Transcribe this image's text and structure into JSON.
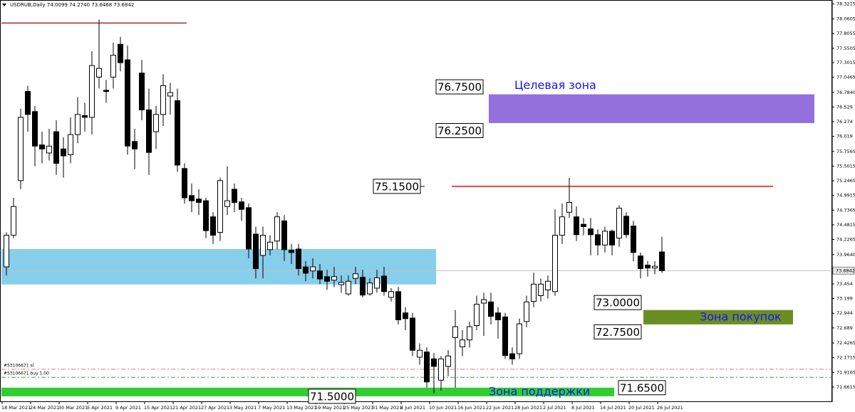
{
  "chart_data": {
    "type": "candlestick",
    "title": "USDRUB,Daily 74.0099 74.2740 73.6468 73.6842",
    "ylim": [
      71.4,
      78.39
    ],
    "yticks": [
      78.3215,
      78.0605,
      77.8055,
      77.5505,
      77.3015,
      77.0465,
      {
        "value": 76.784,
        "label": "76.7840"
      },
      76.529,
      76.274,
      76.019,
      75.7565,
      75.5015,
      75.2465,
      74.9915,
      74.7365,
      74.4815,
      74.2265,
      {
        "value": 73.964,
        "label": "73.9640"
      },
      73.454,
      73.199,
      72.944,
      72.689,
      72.4265,
      72.1715,
      71.9165,
      71.6615
    ],
    "current_price": 73.6842,
    "bull_color": "#ffffff",
    "bear_color": "#000000",
    "categories": [
      "18 Mar 2021",
      null,
      null,
      null,
      "24 Mar 2021",
      null,
      null,
      null,
      "30 Mar 2021",
      null,
      null,
      null,
      "5 Apr 2021",
      null,
      null,
      null,
      "9 Apr 2021",
      null,
      null,
      null,
      "15 Apr 2021",
      null,
      null,
      null,
      "21 Apr 2021",
      null,
      null,
      null,
      "27 Apr 2021",
      null,
      null,
      null,
      "3 May 2021",
      null,
      null,
      null,
      "7 May 2021",
      null,
      null,
      null,
      "13 May 2021",
      null,
      null,
      null,
      "19 May 2021",
      null,
      null,
      null,
      "25 May 2021",
      null,
      null,
      null,
      "31 May 2021",
      null,
      null,
      null,
      "4 Jun 2021",
      null,
      null,
      null,
      "10 Jun 2021",
      null,
      null,
      null,
      "16 Jun 2021",
      null,
      null,
      null,
      "22 Jun 2021",
      null,
      null,
      null,
      "28 Jun 2021",
      null,
      null,
      null,
      "2 Jul 2021",
      null,
      null,
      null,
      "8 Jul 2021",
      null,
      null,
      null,
      "14 Jul 2021",
      null,
      null,
      null,
      "20 Jul 2021",
      null,
      null,
      null,
      "26 Jul 2021"
    ],
    "candles": [
      [
        73.75,
        74.35,
        73.6,
        74.3
      ],
      [
        74.3,
        74.95,
        74.25,
        74.8
      ],
      [
        75.25,
        76.5,
        75.1,
        76.35
      ],
      [
        76.8,
        76.9,
        76.1,
        76.4
      ],
      [
        76.45,
        76.55,
        75.5,
        75.85
      ],
      [
        75.87,
        76.1,
        75.55,
        75.8
      ],
      [
        75.73,
        76.15,
        75.6,
        75.85
      ],
      [
        76.1,
        76.3,
        75.35,
        75.55
      ],
      [
        75.8,
        76.0,
        75.3,
        75.68
      ],
      [
        75.7,
        76.35,
        75.55,
        76.05
      ],
      [
        76.05,
        76.7,
        75.9,
        76.4
      ],
      [
        76.38,
        76.6,
        76.1,
        76.35
      ],
      [
        76.35,
        77.5,
        76.05,
        77.25
      ],
      [
        77.05,
        78.05,
        76.85,
        77.2
      ],
      [
        76.82,
        77.0,
        76.6,
        76.8
      ],
      [
        77.05,
        77.65,
        76.85,
        77.43
      ],
      [
        77.62,
        77.75,
        77.15,
        77.3
      ],
      [
        77.35,
        77.6,
        75.7,
        75.85
      ],
      [
        75.93,
        76.15,
        75.45,
        75.8
      ],
      [
        77.12,
        77.35,
        76.3,
        76.48
      ],
      [
        76.48,
        76.85,
        75.35,
        75.74
      ],
      [
        76.1,
        76.55,
        75.8,
        76.4
      ],
      [
        76.4,
        77.1,
        76.2,
        76.9
      ],
      [
        76.72,
        76.95,
        76.4,
        76.78
      ],
      [
        76.64,
        76.85,
        75.4,
        75.52
      ],
      [
        75.46,
        75.55,
        74.85,
        74.95
      ],
      [
        74.99,
        75.2,
        74.7,
        74.9
      ],
      [
        74.93,
        75.1,
        74.65,
        74.87
      ],
      [
        74.9,
        74.95,
        74.25,
        74.38
      ],
      [
        74.62,
        74.7,
        74.15,
        74.3
      ],
      [
        74.35,
        75.3,
        74.2,
        75.25
      ],
      [
        74.8,
        75.5,
        74.65,
        74.9
      ],
      [
        75.1,
        75.2,
        74.7,
        74.87
      ],
      [
        74.88,
        74.95,
        74.55,
        74.75
      ],
      [
        74.78,
        74.85,
        73.9,
        74.06
      ],
      [
        74.32,
        74.45,
        73.55,
        73.72
      ],
      [
        73.95,
        74.45,
        73.55,
        74.3
      ],
      [
        74.05,
        74.3,
        73.95,
        74.18
      ],
      [
        74.2,
        74.7,
        74.05,
        74.62
      ],
      [
        74.55,
        74.65,
        73.85,
        74.05
      ],
      [
        74.04,
        74.15,
        73.8,
        74.0
      ],
      [
        74.06,
        74.15,
        73.6,
        73.72
      ],
      [
        73.75,
        73.85,
        73.5,
        73.64
      ],
      [
        73.68,
        73.9,
        73.55,
        73.75
      ],
      [
        73.68,
        73.8,
        73.45,
        73.54
      ],
      [
        73.58,
        73.7,
        73.35,
        73.5
      ],
      [
        73.52,
        73.75,
        73.4,
        73.58
      ],
      [
        73.44,
        73.6,
        73.3,
        73.48
      ],
      [
        73.28,
        73.6,
        73.25,
        73.5
      ],
      [
        73.55,
        73.75,
        73.45,
        73.63
      ],
      [
        73.57,
        73.7,
        73.22,
        73.26
      ],
      [
        73.28,
        73.55,
        73.25,
        73.47
      ],
      [
        73.38,
        73.7,
        73.3,
        73.56
      ],
      [
        73.59,
        73.75,
        73.25,
        73.32
      ],
      [
        73.22,
        73.38,
        73.15,
        73.32
      ],
      [
        73.32,
        73.4,
        72.75,
        72.83
      ],
      [
        72.95,
        73.05,
        72.65,
        72.85
      ],
      [
        72.86,
        72.95,
        72.2,
        72.3
      ],
      [
        72.18,
        72.42,
        72.05,
        72.3
      ],
      [
        72.27,
        72.35,
        71.65,
        71.75
      ],
      [
        72.15,
        72.25,
        71.55,
        72.02
      ],
      [
        71.78,
        72.2,
        71.6,
        72.15
      ],
      [
        72.02,
        72.3,
        71.85,
        72.2
      ],
      [
        72.52,
        73.0,
        71.65,
        72.71
      ],
      [
        72.36,
        72.65,
        72.2,
        72.48
      ],
      [
        72.48,
        72.8,
        72.35,
        72.71
      ],
      [
        72.73,
        73.25,
        72.65,
        73.1
      ],
      [
        73.12,
        73.3,
        72.55,
        73.18
      ],
      [
        73.14,
        73.3,
        72.75,
        72.89
      ],
      [
        72.95,
        73.05,
        72.5,
        72.83
      ],
      [
        72.88,
        72.95,
        72.15,
        72.21
      ],
      [
        72.24,
        72.35,
        72.05,
        72.15
      ],
      [
        72.24,
        72.85,
        72.15,
        72.76
      ],
      [
        72.8,
        73.25,
        72.7,
        73.14
      ],
      [
        73.15,
        73.65,
        73.05,
        73.45
      ],
      [
        73.25,
        73.55,
        73.15,
        73.45
      ],
      [
        73.35,
        73.6,
        73.2,
        73.5
      ],
      [
        73.32,
        74.75,
        73.25,
        74.3
      ],
      [
        74.3,
        74.85,
        74.15,
        74.62
      ],
      [
        74.7,
        75.3,
        74.6,
        74.87
      ],
      [
        74.62,
        74.8,
        74.2,
        74.31
      ],
      [
        74.49,
        74.6,
        74.3,
        74.45
      ],
      [
        74.41,
        74.6,
        73.95,
        74.31
      ],
      [
        74.31,
        74.4,
        73.95,
        74.13
      ],
      [
        74.13,
        74.45,
        74.0,
        74.37
      ],
      [
        74.37,
        74.4,
        73.95,
        74.13
      ],
      [
        74.25,
        74.82,
        74.1,
        74.77
      ],
      [
        74.63,
        74.7,
        74.25,
        74.31
      ],
      [
        74.46,
        74.55,
        73.85,
        74.0
      ],
      [
        73.94,
        74.0,
        73.55,
        73.72
      ],
      [
        73.78,
        73.85,
        73.58,
        73.73
      ],
      [
        73.73,
        73.85,
        73.62,
        73.76
      ],
      [
        74.0099,
        74.274,
        73.6468,
        73.6842
      ]
    ],
    "zones": [
      {
        "top": {
          "value": 76.75,
          "label": "76.7500"
        },
        "bottom": {
          "value": 76.25,
          "label": "76.2500"
        },
        "label": "Целевая зона",
        "color": "#9370db"
      },
      {
        "top": {
          "value": 73.0,
          "label": "73.0000"
        },
        "bottom": {
          "value": 72.75,
          "label": "72.7500"
        },
        "label": "Зона покупок",
        "color": "#6b8e23"
      },
      {
        "top": {
          "value": 71.65,
          "label": "71.6500"
        },
        "bottom": {
          "value": 71.5,
          "label": "71.5000"
        },
        "label": "Зона поддержки",
        "color": "#32cd32"
      },
      {
        "top": {
          "value": 74.06
        },
        "bottom": {
          "value": 73.445
        },
        "color": "#87ceeb"
      }
    ],
    "levels": [
      {
        "value": 77.99,
        "color": "#a52a2a"
      },
      {
        "value": 75.15,
        "label": "75.1500",
        "color": "#ff0000"
      }
    ],
    "orders": [
      {
        "label": "#53106671 sl",
        "value": 71.97,
        "color": "#e08060"
      },
      {
        "label": "#53106671 buy 1.00",
        "value": 71.83,
        "color": "#40a040"
      }
    ]
  }
}
